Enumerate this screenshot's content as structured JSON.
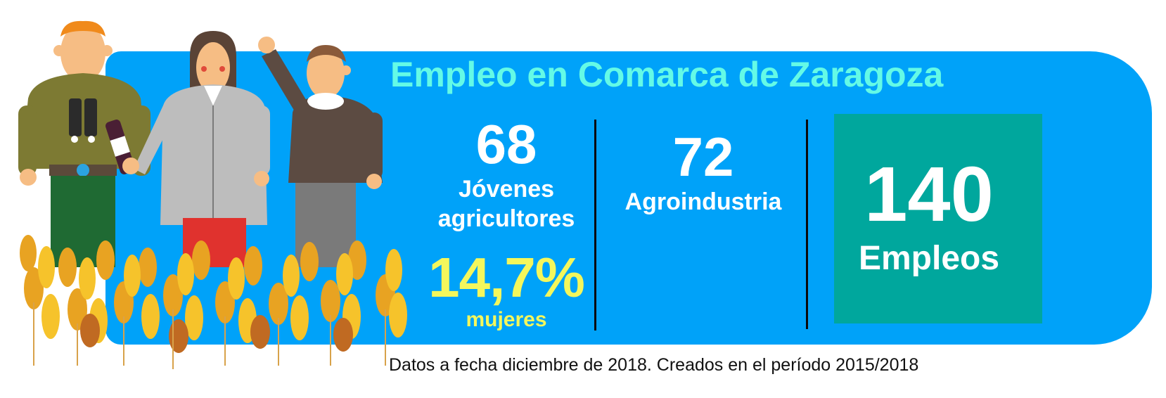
{
  "title": "Empleo en Comarca de Zaragoza",
  "stats": {
    "jovenes": {
      "value": "68",
      "label_line1": "Jóvenes",
      "label_line2": "agricultores"
    },
    "mujeres": {
      "value": "14,7%",
      "label": "mujeres"
    },
    "agroindustria": {
      "value": "72",
      "label": "Agroindustria"
    },
    "total": {
      "value": "140",
      "label": "Empleos"
    }
  },
  "footnote": "Datos a fecha diciembre de 2018. Creados en el período 2015/2018",
  "colors": {
    "panel": "#00a2f9",
    "title": "#64fae6",
    "highlight": "#f4f75c",
    "box": "#00a79d"
  },
  "illustration": {
    "icons": [
      "farmer-binoculars",
      "woman-wine-bottle",
      "man-waving",
      "wheat-field"
    ]
  }
}
